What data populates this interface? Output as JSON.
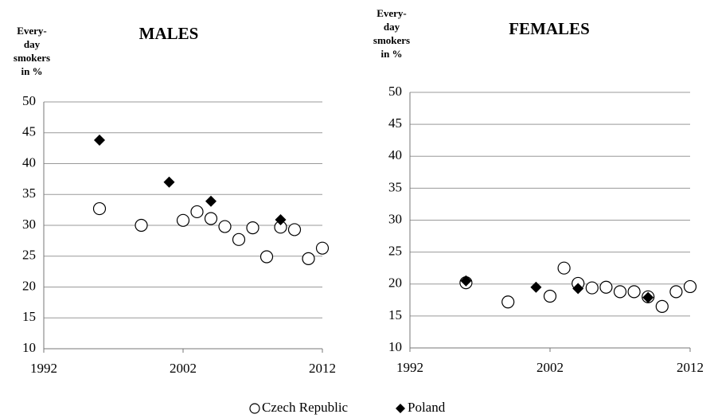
{
  "chart_data": [
    {
      "type": "scatter",
      "title": "MALES",
      "ylabel": [
        "Every-",
        "day",
        "smokers",
        "in %"
      ],
      "xlim": [
        1992,
        2012
      ],
      "xticks": [
        1992,
        2002,
        2012
      ],
      "ylim": [
        10,
        50
      ],
      "yticks": [
        10,
        15,
        20,
        25,
        30,
        35,
        40,
        45,
        50
      ],
      "grid": true,
      "series": [
        {
          "name": "Czech Republic",
          "color": "#000000",
          "marker": "circle",
          "x": [
            1996,
            1999,
            2002,
            2003,
            2004,
            2005,
            2006,
            2007,
            2008,
            2009,
            2010,
            2011,
            2012
          ],
          "values": [
            32.7,
            30.0,
            30.8,
            32.2,
            31.1,
            29.8,
            27.7,
            29.6,
            24.9,
            29.7,
            29.3,
            24.6,
            26.3
          ]
        },
        {
          "name": "Poland",
          "color": "#000000",
          "marker": "diamond",
          "x": [
            1996,
            2001,
            2004,
            2009
          ],
          "values": [
            43.8,
            37.0,
            33.9,
            30.9
          ]
        }
      ]
    },
    {
      "type": "scatter",
      "title": "FEMALES",
      "ylabel": [
        "Every-",
        "day",
        "smokers",
        "in %"
      ],
      "xlim": [
        1992,
        2012
      ],
      "xticks": [
        1992,
        2002,
        2012
      ],
      "ylim": [
        10,
        50
      ],
      "yticks": [
        10,
        15,
        20,
        25,
        30,
        35,
        40,
        45,
        50
      ],
      "grid": true,
      "series": [
        {
          "name": "Czech Republic",
          "color": "#000000",
          "marker": "circle",
          "x": [
            1996,
            1999,
            2002,
            2003,
            2004,
            2005,
            2006,
            2007,
            2008,
            2009,
            2010,
            2011,
            2012
          ],
          "values": [
            20.2,
            17.2,
            18.1,
            22.5,
            20.1,
            19.4,
            19.5,
            18.8,
            18.8,
            18.0,
            16.5,
            18.8,
            19.6
          ]
        },
        {
          "name": "Poland",
          "color": "#000000",
          "marker": "diamond",
          "x": [
            1996,
            2001,
            2004,
            2009
          ],
          "values": [
            20.5,
            19.5,
            19.3,
            17.9
          ]
        }
      ]
    }
  ]
}
